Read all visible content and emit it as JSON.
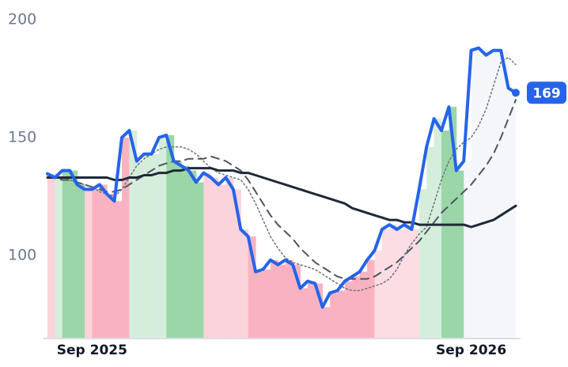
{
  "chart_data": {
    "type": "line",
    "xlim": [
      0,
      63
    ],
    "xticks": [
      {
        "value": 6,
        "label": "Sep 2025"
      },
      {
        "value": 57,
        "label": "Sep 2026"
      }
    ],
    "ylim": [
      65,
      200
    ],
    "yticks": [
      100,
      150,
      200
    ],
    "band_colors": [
      "#fbd3da",
      "#d5eedb",
      "#9ad6a8",
      "#9ad6a8",
      "#9ad6a8",
      "#fbd3da",
      "#f9b3c0",
      "#f9b3c0",
      "#f9b3c0",
      "#f9b3c0",
      "#f9b3c0",
      "#d5eedb",
      "#d5eedb",
      "#d5eedb",
      "#d5eedb",
      "#d5eedb",
      "#9ad6a8",
      "#9ad6a8",
      "#9ad6a8",
      "#9ad6a8",
      "#9ad6a8",
      "#fbd3da",
      "#fbd3da",
      "#fbd3da",
      "#fbd3da",
      "#fbd3da",
      "#fbd3da",
      "#f9b3c0",
      "#f9b3c0",
      "#f9b3c0",
      "#f9b3c0",
      "#f9b3c0",
      "#f9b3c0",
      "#f9b3c0",
      "#f9b3c0",
      "#f9b3c0",
      "#f9b3c0",
      "#f9b3c0",
      "#f9b3c0",
      "#f9b3c0",
      "#f9b3c0",
      "#f9b3c0",
      "#f9b3c0",
      "#f9b3c0",
      "#fcdde3",
      "#fcdde3",
      "#fcdde3",
      "#fcdde3",
      "#fcdde3",
      "#fcdde3",
      "#d5eedb",
      "#d5eedb",
      "#d5eedb",
      "#9ad6a8",
      "#9ad6a8",
      "#9ad6a8",
      "#f4f6fa",
      "#f4f6fa",
      "#f4f6fa",
      "#f4f6fa",
      "#f4f6fa",
      "#f4f6fa",
      "#f4f6fa",
      "#f4f6fa"
    ],
    "series": [
      {
        "color": "#2563eb",
        "style": "solid",
        "width": 4,
        "values": [
          134.6,
          133,
          136,
          136,
          130,
          128,
          128,
          130,
          126,
          123,
          150,
          153,
          140,
          143,
          143,
          150,
          151,
          140,
          138,
          136,
          131,
          135,
          133,
          130,
          133,
          128,
          111,
          108,
          93,
          94,
          98,
          96,
          98,
          96,
          86,
          89,
          88,
          78,
          84,
          85,
          89,
          91,
          93,
          98,
          102,
          111,
          113,
          111,
          113,
          111,
          128,
          146,
          158,
          153,
          163,
          136,
          140,
          187,
          188,
          185,
          187,
          187,
          171,
          169
        ]
      },
      {
        "color": "#1f2937",
        "style": "solid",
        "width": 3,
        "values": [
          133,
          133,
          133,
          133,
          133,
          133,
          133,
          133,
          133,
          132,
          132,
          133,
          133,
          134,
          134,
          135,
          135,
          136,
          136,
          137,
          137,
          137,
          137,
          136,
          136,
          136,
          135,
          135,
          134,
          133,
          132,
          131,
          130,
          129,
          128,
          127,
          126,
          125,
          124,
          123,
          122,
          120,
          119,
          118,
          117,
          116,
          115,
          115,
          114,
          114,
          113,
          113,
          113,
          113,
          113,
          113,
          113,
          112,
          113,
          114,
          115,
          117,
          119,
          121
        ]
      },
      {
        "color": "#4b5563",
        "style": "dashed",
        "width": 2,
        "values": [
          133,
          133,
          132,
          132,
          131,
          130,
          129,
          128,
          127,
          127,
          128,
          130,
          132,
          134,
          136,
          138,
          139,
          140,
          140,
          141,
          141,
          141,
          142,
          141,
          140,
          138,
          136,
          132,
          127,
          122,
          117,
          113,
          110,
          107,
          103,
          100,
          97,
          95,
          93,
          91,
          90,
          90,
          90,
          90,
          91,
          93,
          95,
          97,
          100,
          103,
          106,
          110,
          114,
          118,
          121,
          124,
          127,
          130,
          134,
          138,
          143,
          150,
          158,
          166
        ]
      },
      {
        "color": "#6b7280",
        "style": "dotted",
        "width": 1.5,
        "values": [
          134,
          133,
          133,
          132,
          131,
          130,
          129,
          127,
          126,
          125,
          128,
          133,
          138,
          141,
          143,
          145,
          146,
          146,
          146,
          145,
          143,
          140,
          137,
          135,
          134,
          133,
          132,
          128,
          122,
          115,
          108,
          103,
          99,
          97,
          96,
          95,
          94,
          92,
          90,
          88,
          86,
          85,
          85,
          86,
          87,
          88,
          90,
          94,
          100,
          105,
          109,
          112,
          122,
          132,
          140,
          145,
          148,
          150,
          155,
          162,
          172,
          182,
          184,
          181
        ]
      }
    ]
  }
}
